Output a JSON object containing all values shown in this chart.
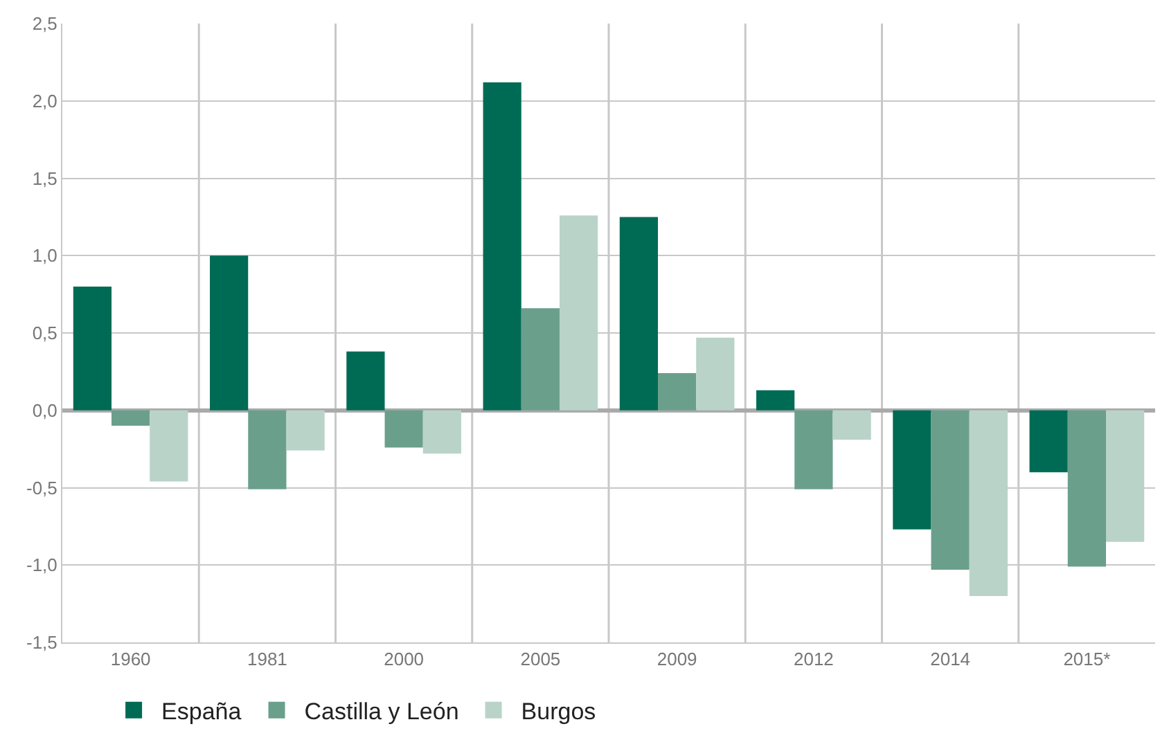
{
  "chart_data": {
    "type": "bar",
    "categories": [
      "1960",
      "1981",
      "2000",
      "2005",
      "2009",
      "2012",
      "2014",
      "2015*"
    ],
    "series": [
      {
        "name": "España",
        "color": "#006b54",
        "values": [
          0.8,
          1.0,
          0.38,
          2.12,
          1.25,
          0.13,
          -0.77,
          -0.4
        ]
      },
      {
        "name": "Castilla y León",
        "color": "#6a9f8c",
        "values": [
          -0.1,
          -0.51,
          -0.24,
          0.66,
          0.24,
          -0.51,
          -1.03,
          -1.01
        ]
      },
      {
        "name": "Burgos",
        "color": "#b9d3c8",
        "values": [
          -0.46,
          -0.26,
          -0.28,
          1.26,
          0.47,
          -0.19,
          -1.2,
          -0.85
        ]
      }
    ],
    "ylim": [
      -1.5,
      2.5
    ],
    "yticks": [
      {
        "value": -1.5,
        "label": "-1,5"
      },
      {
        "value": -1.0,
        "label": "-1,0"
      },
      {
        "value": -0.5,
        "label": "-0,5"
      },
      {
        "value": 0,
        "label": "0,0"
      },
      {
        "value": 0.5,
        "label": "0,5"
      },
      {
        "value": 1.0,
        "label": "1,0"
      },
      {
        "value": 1.5,
        "label": "1,5"
      },
      {
        "value": 2.0,
        "label": "2,0"
      },
      {
        "value": 2.5,
        "label": "2,5"
      }
    ],
    "grid": true,
    "legend": "bottom left"
  }
}
